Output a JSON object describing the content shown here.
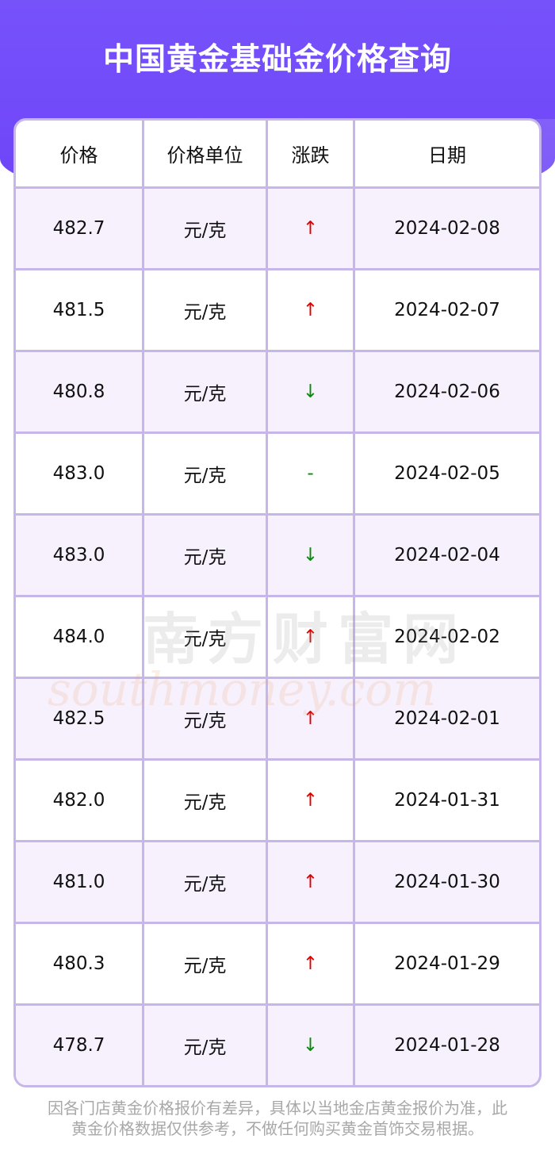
{
  "title": "中国黄金基础金价格查询",
  "table": {
    "headers": [
      "价格",
      "价格单位",
      "涨跌",
      "日期"
    ],
    "rows": [
      {
        "price": "482.7",
        "unit": "元/克",
        "change": "↑",
        "trend": "up",
        "date": "2024-02-08"
      },
      {
        "price": "481.5",
        "unit": "元/克",
        "change": "↑",
        "trend": "up",
        "date": "2024-02-07"
      },
      {
        "price": "480.8",
        "unit": "元/克",
        "change": "↓",
        "trend": "down",
        "date": "2024-02-06"
      },
      {
        "price": "483.0",
        "unit": "元/克",
        "change": "-",
        "trend": "flat",
        "date": "2024-02-05"
      },
      {
        "price": "483.0",
        "unit": "元/克",
        "change": "↓",
        "trend": "down",
        "date": "2024-02-04"
      },
      {
        "price": "484.0",
        "unit": "元/克",
        "change": "↑",
        "trend": "up",
        "date": "2024-02-02"
      },
      {
        "price": "482.5",
        "unit": "元/克",
        "change": "↑",
        "trend": "up",
        "date": "2024-02-01"
      },
      {
        "price": "482.0",
        "unit": "元/克",
        "change": "↑",
        "trend": "up",
        "date": "2024-01-31"
      },
      {
        "price": "481.0",
        "unit": "元/克",
        "change": "↑",
        "trend": "up",
        "date": "2024-01-30"
      },
      {
        "price": "480.3",
        "unit": "元/克",
        "change": "↑",
        "trend": "up",
        "date": "2024-01-29"
      },
      {
        "price": "478.7",
        "unit": "元/克",
        "change": "↓",
        "trend": "down",
        "date": "2024-01-28"
      }
    ]
  },
  "watermark": {
    "cn": "南方财富网",
    "en": "southmoney.com"
  },
  "footer": "因各门店黄金价格报价有差异，具体以当地金店黄金报价为准，此黄金价格数据仅供参考，不做任何购买黄金首饰交易根据。",
  "colors": {
    "header_bg": "#7050f8",
    "border": "#c6b6ea",
    "row_alt": "#f6f1fd",
    "up": "#e00000",
    "down": "#0a8a0a"
  }
}
